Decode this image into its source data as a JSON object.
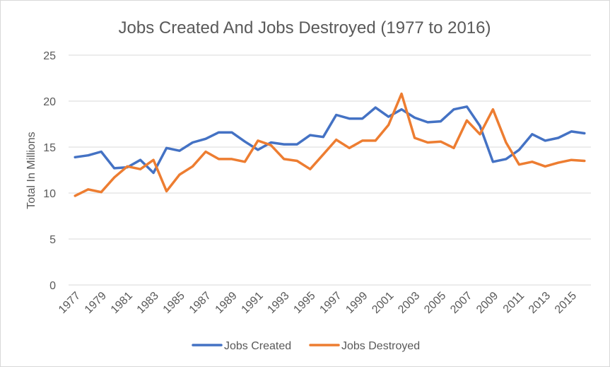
{
  "chart_data": {
    "type": "line",
    "title": "Jobs Created And Jobs Destroyed (1977 to 2016)",
    "xlabel": "",
    "ylabel": "Total In Millions",
    "ylim": [
      0,
      25
    ],
    "yticks": [
      0,
      5,
      10,
      15,
      20,
      25
    ],
    "grid": true,
    "legend_position": "bottom",
    "x": [
      1977,
      1978,
      1979,
      1980,
      1981,
      1982,
      1983,
      1984,
      1985,
      1986,
      1987,
      1988,
      1989,
      1990,
      1991,
      1992,
      1993,
      1994,
      1995,
      1996,
      1997,
      1998,
      1999,
      2000,
      2001,
      2002,
      2003,
      2004,
      2005,
      2006,
      2007,
      2008,
      2009,
      2010,
      2011,
      2012,
      2013,
      2014,
      2015,
      2016
    ],
    "xtick_labels": [
      "1977",
      "1979",
      "1981",
      "1983",
      "1985",
      "1987",
      "1989",
      "1991",
      "1993",
      "1995",
      "1997",
      "1999",
      "2001",
      "2003",
      "2005",
      "2007",
      "2009",
      "2011",
      "2013",
      "2015"
    ],
    "series": [
      {
        "name": "Jobs Created",
        "color": "#4472c4",
        "values": [
          13.9,
          14.1,
          14.5,
          12.7,
          12.8,
          13.6,
          12.2,
          14.9,
          14.6,
          15.5,
          15.9,
          16.6,
          16.6,
          15.6,
          14.7,
          15.5,
          15.3,
          15.3,
          16.3,
          16.1,
          18.5,
          18.1,
          18.1,
          19.3,
          18.3,
          19.1,
          18.2,
          17.7,
          17.8,
          19.1,
          19.4,
          17.3,
          13.4,
          13.7,
          14.7,
          16.4,
          15.7,
          16.0,
          16.7,
          16.5
        ]
      },
      {
        "name": "Jobs Destroyed",
        "color": "#ed7d31",
        "values": [
          9.7,
          10.4,
          10.1,
          11.7,
          12.9,
          12.6,
          13.6,
          10.2,
          12.0,
          12.9,
          14.5,
          13.7,
          13.7,
          13.4,
          15.7,
          15.2,
          13.7,
          13.5,
          12.6,
          14.2,
          15.8,
          14.9,
          15.7,
          15.7,
          17.4,
          20.8,
          16.0,
          15.5,
          15.6,
          14.9,
          17.9,
          16.4,
          19.1,
          15.5,
          13.1,
          13.4,
          12.9,
          13.3,
          13.6,
          13.5
        ]
      }
    ]
  }
}
